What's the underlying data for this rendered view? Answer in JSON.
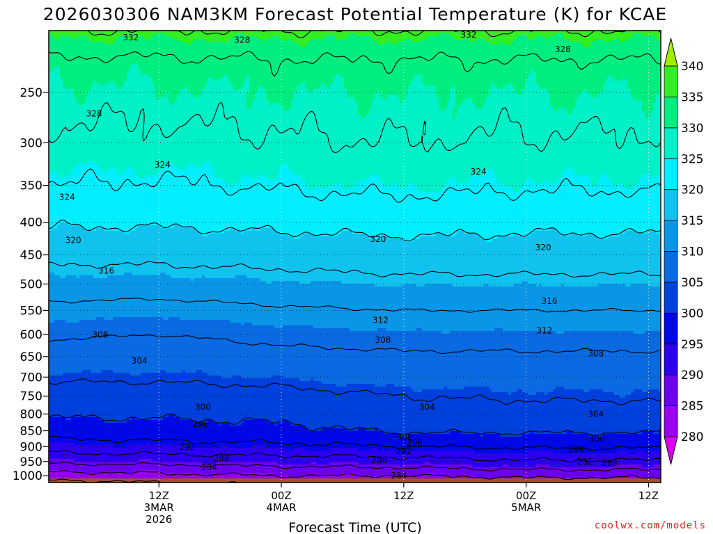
{
  "chart_data": {
    "type": "heatmap",
    "title": "2026030306 NAM3KM Forecast Potential Temperature (K) for KCAE",
    "xlabel": "Forecast Time (UTC)",
    "ylabel": "",
    "y_axis": {
      "scale": "log",
      "reversed": true,
      "unit": "hPa",
      "range": [
        200,
        1025
      ],
      "ticks": [
        250,
        300,
        350,
        400,
        450,
        500,
        550,
        600,
        650,
        700,
        750,
        800,
        850,
        900,
        950,
        1000
      ]
    },
    "x_axis": {
      "range_hours": [
        -9,
        41
      ],
      "ticks": [
        {
          "hour": 0,
          "lines": [
            "12Z",
            "3MAR",
            "2026"
          ]
        },
        {
          "hour": 10,
          "lines": [
            "00Z",
            "4MAR"
          ]
        },
        {
          "hour": 20,
          "lines": [
            "12Z"
          ]
        },
        {
          "hour": 30,
          "lines": [
            "00Z",
            "5MAR"
          ]
        },
        {
          "hour": 40,
          "lines": [
            "12Z"
          ]
        }
      ]
    },
    "grid": true,
    "colorbar": {
      "placement": "right",
      "min": 275,
      "max": 345,
      "labels": [
        280,
        285,
        290,
        295,
        300,
        305,
        310,
        315,
        320,
        325,
        330,
        335,
        340
      ],
      "colors": [
        "#dd00ee",
        "#9900ee",
        "#6a00ee",
        "#2a00ee",
        "#0008e8",
        "#0040dd",
        "#0a6ae2",
        "#0a96e6",
        "#10c2ee",
        "#00eeff",
        "#00f0c8",
        "#00ee80",
        "#33ee22",
        "#a0ee00"
      ]
    },
    "contour_interval": 4,
    "profiles": [
      {
        "hour": -9,
        "pressure": [
          1000,
          975,
          950,
          925,
          900,
          850,
          800,
          750,
          700,
          650,
          600,
          550,
          500,
          450,
          400,
          350,
          300,
          250,
          225,
          200
        ],
        "theta": [
          282,
          285.5,
          289,
          291.5,
          294,
          298,
          300.5,
          302.5,
          304.5,
          306.5,
          308.5,
          311,
          314,
          317,
          320.5,
          324,
          327,
          329.5,
          331,
          336
        ]
      },
      {
        "hour": 0,
        "pressure": [
          1000,
          975,
          950,
          925,
          900,
          850,
          800,
          750,
          700,
          650,
          600,
          550,
          500,
          450,
          400,
          350,
          300,
          250,
          225,
          200
        ],
        "theta": [
          283,
          286,
          289.5,
          292,
          294.5,
          298.5,
          300.5,
          302.5,
          304.5,
          306,
          308,
          310.5,
          314,
          317,
          320.5,
          323.5,
          327,
          329.5,
          331,
          336
        ]
      },
      {
        "hour": 10,
        "pressure": [
          1000,
          975,
          950,
          925,
          900,
          850,
          800,
          750,
          700,
          650,
          600,
          550,
          500,
          450,
          400,
          350,
          300,
          250,
          225,
          200
        ],
        "theta": [
          284,
          287,
          290,
          292.5,
          295,
          299,
          301,
          303,
          305,
          307,
          309,
          311.5,
          314.5,
          317.5,
          321,
          324.5,
          327.5,
          330,
          331.5,
          336
        ]
      },
      {
        "hour": 20,
        "pressure": [
          1000,
          975,
          950,
          925,
          900,
          850,
          800,
          750,
          700,
          650,
          600,
          550,
          500,
          450,
          400,
          350,
          300,
          250,
          225,
          200
        ],
        "theta": [
          284,
          287.5,
          290.5,
          293,
          296,
          300.5,
          302.5,
          304,
          306,
          307.5,
          309.5,
          312,
          315,
          318,
          321.5,
          325,
          328,
          330,
          331.5,
          336
        ]
      },
      {
        "hour": 30,
        "pressure": [
          1000,
          975,
          950,
          925,
          900,
          850,
          800,
          750,
          700,
          650,
          600,
          550,
          500,
          450,
          400,
          350,
          300,
          250,
          225,
          200
        ],
        "theta": [
          285,
          288.5,
          291.5,
          294,
          296.5,
          300.5,
          302.5,
          304.5,
          306,
          307.5,
          309.5,
          312,
          315,
          318,
          321,
          324.5,
          327.5,
          330,
          331.5,
          336
        ]
      },
      {
        "hour": 41,
        "pressure": [
          1000,
          975,
          950,
          925,
          900,
          850,
          800,
          750,
          700,
          650,
          600,
          550,
          500,
          450,
          400,
          350,
          300,
          250,
          225,
          200
        ],
        "theta": [
          285,
          288.5,
          291.5,
          294,
          296.5,
          300.5,
          302.5,
          304.5,
          306,
          307.5,
          309.5,
          312,
          315,
          318,
          321,
          324.5,
          327.5,
          330,
          331.5,
          336
        ]
      }
    ],
    "contour_labels": [
      {
        "value": "332",
        "hour": -2.3,
        "pressure": 205
      },
      {
        "value": "328",
        "hour": 6.8,
        "pressure": 207
      },
      {
        "value": "332",
        "hour": 25.3,
        "pressure": 203
      },
      {
        "value": "328",
        "hour": 33.0,
        "pressure": 214
      },
      {
        "value": "328",
        "hour": -5.3,
        "pressure": 270
      },
      {
        "value": "324",
        "hour": 0.3,
        "pressure": 325
      },
      {
        "value": "324",
        "hour": 26.1,
        "pressure": 333
      },
      {
        "value": "324",
        "hour": -7.5,
        "pressure": 365
      },
      {
        "value": "320",
        "hour": -7.0,
        "pressure": 427
      },
      {
        "value": "320",
        "hour": 17.9,
        "pressure": 425
      },
      {
        "value": "320",
        "hour": 31.4,
        "pressure": 438
      },
      {
        "value": "316",
        "hour": -4.3,
        "pressure": 477
      },
      {
        "value": "316",
        "hour": 31.9,
        "pressure": 532
      },
      {
        "value": "312",
        "hour": 18.1,
        "pressure": 570
      },
      {
        "value": "312",
        "hour": 31.5,
        "pressure": 592
      },
      {
        "value": "308",
        "hour": -4.8,
        "pressure": 601
      },
      {
        "value": "308",
        "hour": 18.3,
        "pressure": 612
      },
      {
        "value": "308",
        "hour": 35.7,
        "pressure": 643
      },
      {
        "value": "304",
        "hour": -1.6,
        "pressure": 660
      },
      {
        "value": "304",
        "hour": 21.9,
        "pressure": 780
      },
      {
        "value": "304",
        "hour": 35.7,
        "pressure": 800
      },
      {
        "value": "300",
        "hour": 3.6,
        "pressure": 780
      },
      {
        "value": "300",
        "hour": 20.1,
        "pressure": 870
      },
      {
        "value": "300",
        "hour": 35.8,
        "pressure": 875
      },
      {
        "value": "296",
        "hour": 3.4,
        "pressure": 830
      },
      {
        "value": "296",
        "hour": 20.9,
        "pressure": 888
      },
      {
        "value": "296",
        "hour": 34.1,
        "pressure": 910
      },
      {
        "value": "292",
        "hour": 2.3,
        "pressure": 902
      },
      {
        "value": "292",
        "hour": 20.0,
        "pressure": 915
      },
      {
        "value": "292",
        "hour": 34.8,
        "pressure": 950
      },
      {
        "value": "288",
        "hour": 5.1,
        "pressure": 940
      },
      {
        "value": "288",
        "hour": 18.0,
        "pressure": 945
      },
      {
        "value": "288",
        "hour": 36.8,
        "pressure": 955
      },
      {
        "value": "284",
        "hour": 4.1,
        "pressure": 970
      },
      {
        "value": "284",
        "hour": 19.6,
        "pressure": 1000
      }
    ],
    "ground": {
      "pressure_from": 1010,
      "color": "#a0522d"
    }
  },
  "credit": {
    "text": "coolwx.com/models",
    "color": "#e62020"
  }
}
